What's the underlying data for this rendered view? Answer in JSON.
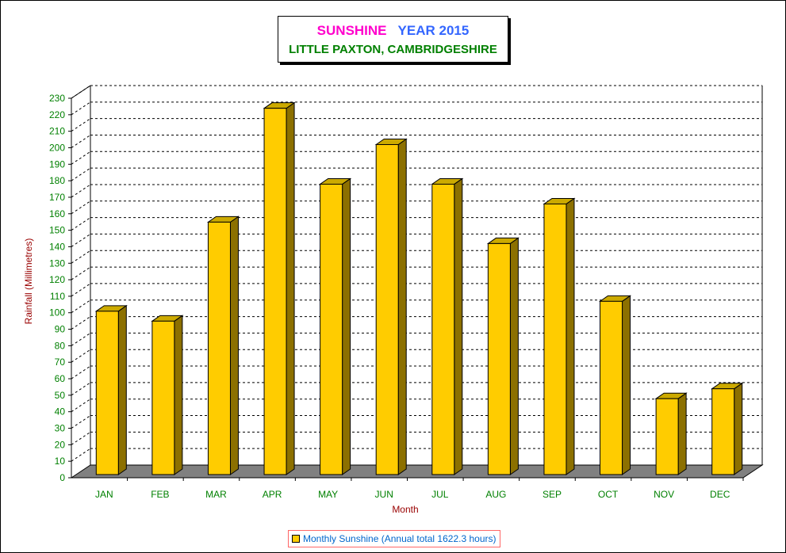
{
  "title": {
    "word1": "SUNSHINE",
    "word2": "YEAR 2015",
    "subtitle": "LITTLE PAXTON, CAMBRIDGESHIRE"
  },
  "legend": {
    "label": "Monthly Sunshine (Annual total 1622.3 hours)"
  },
  "colors": {
    "bar_front": "#ffcc00",
    "bar_side": "#8c7000",
    "bar_top": "#ccaa00",
    "floor": "#808080",
    "tick_text": "#008000",
    "axis_title": "#990000"
  },
  "chart_data": {
    "type": "bar",
    "categories": [
      "JAN",
      "FEB",
      "MAR",
      "APR",
      "MAY",
      "JUN",
      "JUL",
      "AUG",
      "SEP",
      "OCT",
      "NOV",
      "DEC"
    ],
    "series": [
      {
        "name": "Monthly Sunshine (Annual total 1622.3 hours)",
        "values": [
          99,
          93,
          153,
          222,
          176,
          200,
          176,
          140,
          164,
          105,
          46,
          52
        ]
      }
    ],
    "xlabel": "Month",
    "ylabel": "Rainfall  (Millimetres)",
    "ylim": [
      0,
      230
    ],
    "yticks": [
      "0",
      "10",
      "20",
      "30",
      "40",
      "50",
      "60",
      "70",
      "80",
      "90",
      "100",
      "110",
      "120",
      "130",
      "140",
      "150",
      "160",
      "170",
      "180",
      "190",
      "200",
      "210",
      "220",
      "230"
    ],
    "grid": true,
    "legend_position": "bottom-center"
  }
}
